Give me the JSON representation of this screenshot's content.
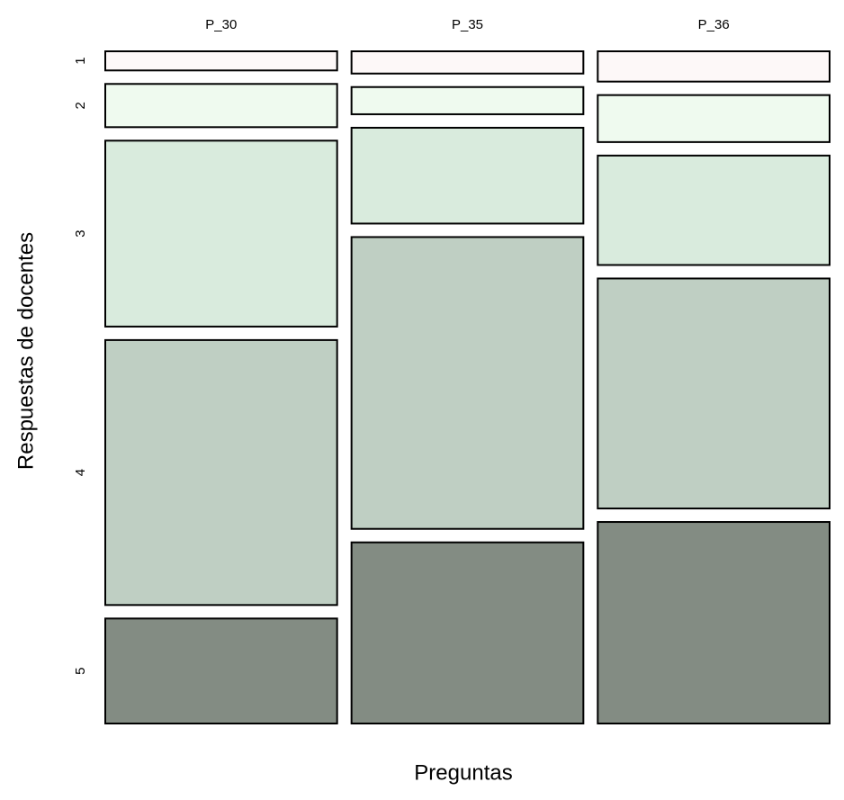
{
  "chart_data": {
    "type": "mosaic",
    "categories": [
      "P_30",
      "P_35",
      "P_36"
    ],
    "x_label": "Preguntas",
    "y_label": "Respuestas de docentes",
    "series": [
      {
        "name": "1",
        "color": "#fdf8f8",
        "values": [
          3.1,
          3.6,
          4.9
        ]
      },
      {
        "name": "2",
        "color": "#effaef",
        "values": [
          7.0,
          4.4,
          7.6
        ]
      },
      {
        "name": "3",
        "color": "#d9ebdd",
        "values": [
          30.1,
          15.5,
          17.7
        ]
      },
      {
        "name": "4",
        "color": "#bfcfc3",
        "values": [
          42.9,
          47.2,
          37.2
        ]
      },
      {
        "name": "5",
        "color": "#838c83",
        "values": [
          17.0,
          29.3,
          32.6
        ]
      }
    ]
  }
}
